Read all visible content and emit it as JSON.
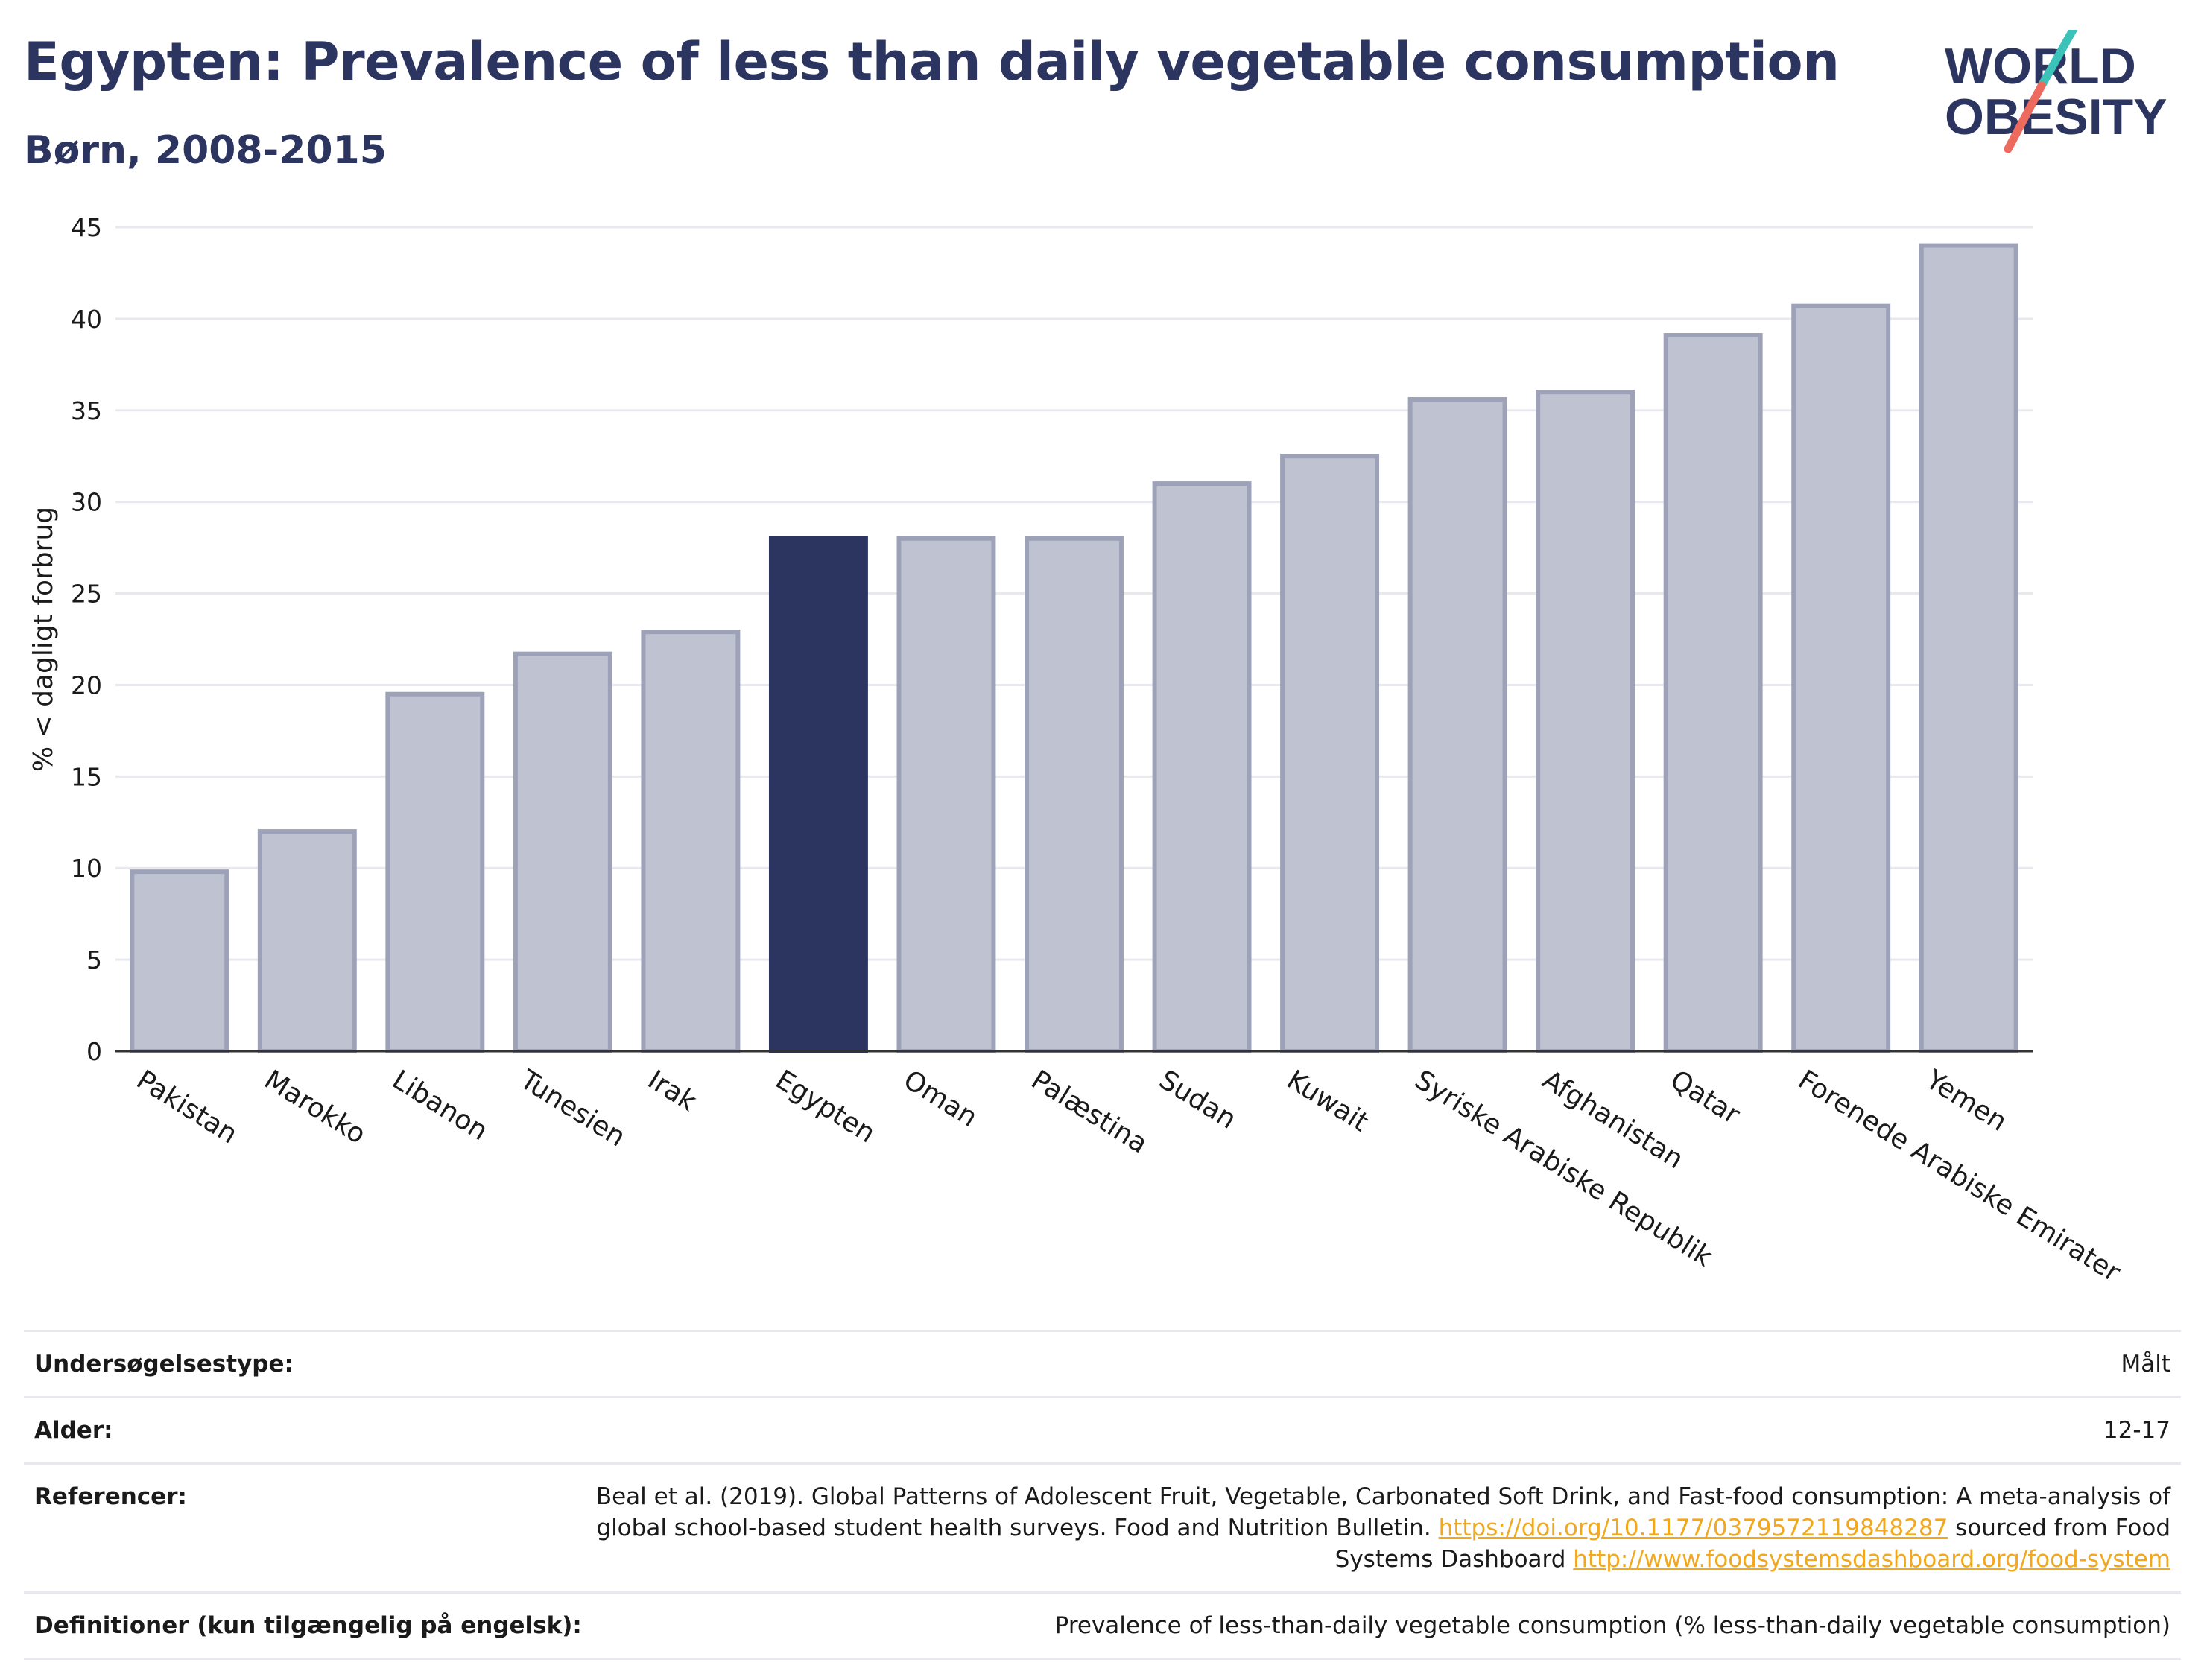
{
  "header": {
    "title": "Egypten: Prevalence of less than daily vegetable consumption",
    "subtitle": "Børn, 2008-2015"
  },
  "logo": {
    "line1": "WORLD",
    "line2": "OBESITY",
    "accent_teal": "#3cc3b9",
    "accent_red": "#ec6a5e",
    "text_color": "#2c3560"
  },
  "chart_data": {
    "type": "bar",
    "title": "Egypten: Prevalence of less than daily vegetable consumption",
    "subtitle": "Børn, 2008-2015",
    "xlabel": "",
    "ylabel": "% < dagligt forbrug",
    "ylim": [
      0,
      45
    ],
    "yticks": [
      0,
      5,
      10,
      15,
      20,
      25,
      30,
      35,
      40,
      45
    ],
    "grid": true,
    "legend": "none",
    "highlight": "Egypten",
    "highlight_color": "#2c3560",
    "bar_color": "#bfc2d0",
    "bar_border_color": "#9da2b8",
    "categories": [
      "Pakistan",
      "Marokko",
      "Libanon",
      "Tunesien",
      "Irak",
      "Egypten",
      "Oman",
      "Palæstina",
      "Sudan",
      "Kuwait",
      "Syriske Arabiske Republik",
      "Afghanistan",
      "Qatar",
      "Forenede Arabiske Emirater",
      "Yemen"
    ],
    "values": [
      9.8,
      12.0,
      19.5,
      21.7,
      22.9,
      28.0,
      28.0,
      28.0,
      31.0,
      32.5,
      35.6,
      36.0,
      39.1,
      40.7,
      44.0
    ]
  },
  "info": {
    "rows": [
      {
        "label": "Undersøgelsestype:",
        "value": "Målt"
      },
      {
        "label": "Alder:",
        "value": "12-17"
      }
    ],
    "references": {
      "label": "Referencer:",
      "text1": "Beal et al. (2019). Global Patterns of Adolescent Fruit, Vegetable, Carbonated Soft Drink, and Fast-food consumption: A meta-analysis of global school-based student health surveys. Food and Nutrition Bulletin. ",
      "link1": "https://doi.org/10.1177/0379572119848287",
      "text2": " sourced from Food Systems Dashboard ",
      "link2": "http://www.foodsystemsdashboard.org/food-system"
    },
    "definitions": {
      "label": "Definitioner (kun tilgængelig på engelsk):",
      "value": "Prevalence of less-than-daily vegetable consumption (% less-than-daily vegetable consumption)"
    }
  }
}
